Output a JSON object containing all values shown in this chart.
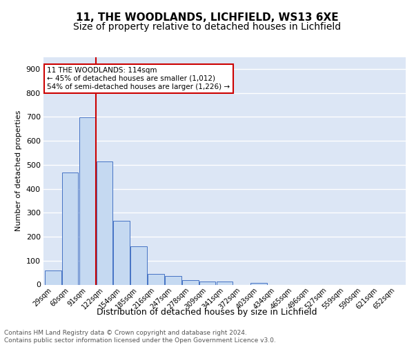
{
  "title1": "11, THE WOODLANDS, LICHFIELD, WS13 6XE",
  "title2": "Size of property relative to detached houses in Lichfield",
  "xlabel": "Distribution of detached houses by size in Lichfield",
  "ylabel": "Number of detached properties",
  "footer": "Contains HM Land Registry data © Crown copyright and database right 2024.\nContains public sector information licensed under the Open Government Licence v3.0.",
  "categories": [
    "29sqm",
    "60sqm",
    "91sqm",
    "122sqm",
    "154sqm",
    "185sqm",
    "216sqm",
    "247sqm",
    "278sqm",
    "309sqm",
    "341sqm",
    "372sqm",
    "403sqm",
    "434sqm",
    "465sqm",
    "496sqm",
    "527sqm",
    "559sqm",
    "590sqm",
    "621sqm",
    "652sqm"
  ],
  "values": [
    60,
    467,
    697,
    513,
    265,
    160,
    46,
    35,
    20,
    14,
    12,
    0,
    8,
    0,
    0,
    0,
    0,
    0,
    0,
    0,
    0
  ],
  "bar_color": "#c5d9f1",
  "bar_edge_color": "#4472c4",
  "bg_color": "#dce6f5",
  "grid_color": "#ffffff",
  "annotation_text": "11 THE WOODLANDS: 114sqm\n← 45% of detached houses are smaller (1,012)\n54% of semi-detached houses are larger (1,226) →",
  "red_line_x": 2.5,
  "ylim": [
    0,
    950
  ],
  "yticks": [
    0,
    100,
    200,
    300,
    400,
    500,
    600,
    700,
    800,
    900
  ],
  "annotation_box_color": "#ffffff",
  "annotation_box_edge": "#cc0000",
  "title_fontsize": 11,
  "subtitle_fontsize": 10
}
